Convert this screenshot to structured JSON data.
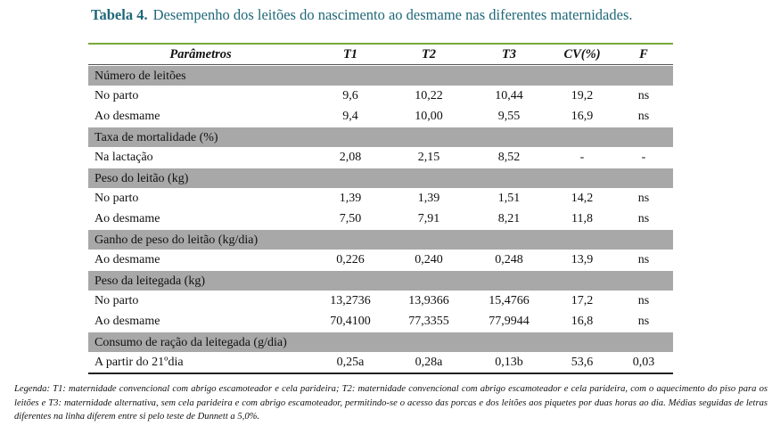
{
  "title": {
    "label": "Tabela 4.",
    "text": "Desempenho dos leitões do nascimento ao desmame nas diferentes maternidades."
  },
  "table": {
    "header": [
      "Parâmetros",
      "T1",
      "T2",
      "T3",
      "CV(%)",
      "F"
    ],
    "sections": [
      {
        "title": "Número de leitões",
        "rows": [
          [
            "No parto",
            "9,6",
            "10,22",
            "10,44",
            "19,2",
            "ns"
          ],
          [
            "Ao desmame",
            "9,4",
            "10,00",
            "9,55",
            "16,9",
            "ns"
          ]
        ]
      },
      {
        "title": "Taxa de mortalidade (%)",
        "rows": [
          [
            "Na lactação",
            "2,08",
            "2,15",
            "8,52",
            "-",
            "-"
          ]
        ]
      },
      {
        "title": "Peso do leitão (kg)",
        "rows": [
          [
            "No parto",
            "1,39",
            "1,39",
            "1,51",
            "14,2",
            "ns"
          ],
          [
            "Ao desmame",
            "7,50",
            "7,91",
            "8,21",
            "11,8",
            "ns"
          ]
        ]
      },
      {
        "title": "Ganho de peso do leitão (kg/dia)",
        "rows": [
          [
            "Ao desmame",
            "0,226",
            "0,240",
            "0,248",
            "13,9",
            "ns"
          ]
        ]
      },
      {
        "title": "Peso da leitegada (kg)",
        "rows": [
          [
            "No parto",
            "13,2736",
            "13,9366",
            "15,4766",
            "17,2",
            "ns"
          ],
          [
            "Ao desmame",
            "70,4100",
            "77,3355",
            "77,9944",
            "16,8",
            "ns"
          ]
        ]
      },
      {
        "title": "Consumo de ração da leitegada (g/dia)",
        "rows": [
          [
            "A partir do 21ºdia",
            "0,25a",
            "0,28a",
            "0,13b",
            "53,6",
            "0,03"
          ]
        ]
      }
    ]
  },
  "legend": "Legenda: T1: maternidade convencional com abrigo escamoteador e cela parideira; T2: maternidade convencional com abrigo escamoteador e cela parideira, com o aquecimento do piso para os leitões e T3: maternidade alternativa, sem cela parideira e com abrigo escamoteador, permitindo-se o acesso das porcas e dos leitões aos piquetes por duas horas ao dia.  Médias seguidas de letras diferentes na linha diferem entre si pelo teste de Dunnett a 5,0%."
}
